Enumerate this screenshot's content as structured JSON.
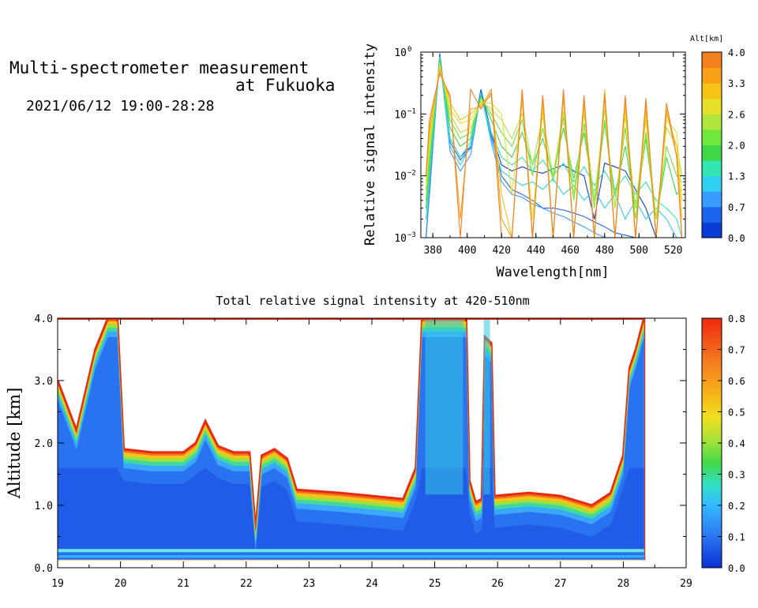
{
  "header": {
    "title_line1": "Multi-spectrometer measurement",
    "title_line2": "at Fukuoka",
    "datetime": "2021/06/12 19:00-28:28"
  },
  "chart_data": [
    {
      "type": "line",
      "title": "",
      "xlabel": "Wavelength[nm]",
      "ylabel": "Relative signal intensity",
      "xlim": [
        373,
        527
      ],
      "ylim": [
        0.001,
        1
      ],
      "yscale": "log",
      "xticks": [
        "380",
        "400",
        "420",
        "440",
        "460",
        "480",
        "500",
        "520"
      ],
      "yticks": [
        "10",
        "10",
        "10",
        "10"
      ],
      "ytick_exponents": [
        "0",
        "−1",
        "−2",
        "−3"
      ],
      "grid": false,
      "legend": "colorbar",
      "colorbar": {
        "title": "Alt[km]",
        "ticks": [
          "4.0",
          "3.3",
          "2.6",
          "2.0",
          "1.3",
          "0.7",
          "0.0"
        ],
        "colors": [
          "#0a3dd8",
          "#1c64ec",
          "#3a9bff",
          "#2fd0f0",
          "#33e6b0",
          "#40d84a",
          "#6ee83a",
          "#b0e63c",
          "#e6e02a",
          "#f7c316",
          "#f7a018",
          "#f58020"
        ]
      },
      "x": [
        376,
        378,
        384,
        390,
        396,
        402,
        408,
        414,
        420,
        426,
        432,
        438,
        444,
        450,
        456,
        462,
        468,
        474,
        480,
        486,
        492,
        498,
        504,
        510,
        516,
        522,
        525
      ],
      "series": [
        {
          "altitude_km": 0.0,
          "color": "#0a3dd8",
          "values": [
            0.001,
            0.005,
            0.95,
            0.04,
            0.02,
            0.03,
            0.25,
            0.05,
            0.015,
            0.012,
            0.014,
            0.012,
            0.011,
            0.013,
            0.015,
            0.012,
            0.01,
            0.002,
            0.016,
            0.014,
            0.012,
            0.006,
            0.003,
            0.001,
            0.001,
            0.001,
            0.001
          ]
        },
        {
          "altitude_km": 0.3,
          "color": "#1c64ec",
          "values": [
            0.001,
            0.006,
            0.9,
            0.035,
            0.018,
            0.028,
            0.24,
            0.045,
            0.01,
            0.006,
            0.005,
            0.004,
            0.003,
            0.003,
            0.0028,
            0.0025,
            0.0022,
            0.0018,
            0.0015,
            0.0012,
            0.0011,
            0.001,
            0.001,
            0.001,
            0.001,
            0.001,
            0.001
          ]
        },
        {
          "altitude_km": 0.7,
          "color": "#3a9bff",
          "values": [
            0.001,
            0.005,
            0.85,
            0.025,
            0.012,
            0.022,
            0.22,
            0.035,
            0.008,
            0.005,
            0.0045,
            0.0035,
            0.003,
            0.0025,
            0.0022,
            0.0018,
            0.0015,
            0.0012,
            0.001,
            0.001,
            0.001,
            0.001,
            0.001,
            0.001,
            0.001,
            0.001,
            0.001
          ]
        },
        {
          "altitude_km": 1.3,
          "color": "#2fd0f0",
          "values": [
            0.002,
            0.01,
            0.85,
            0.03,
            0.015,
            0.03,
            0.22,
            0.04,
            0.012,
            0.009,
            0.007,
            0.008,
            0.006,
            0.009,
            0.005,
            0.007,
            0.004,
            0.006,
            0.003,
            0.005,
            0.002,
            0.004,
            0.002,
            0.003,
            0.002,
            0.001,
            0.001
          ]
        },
        {
          "altitude_km": 1.6,
          "color": "#33e6b0",
          "values": [
            0.002,
            0.01,
            0.8,
            0.04,
            0.02,
            0.035,
            0.2,
            0.05,
            0.02,
            0.015,
            0.02,
            0.012,
            0.018,
            0.01,
            0.016,
            0.008,
            0.014,
            0.007,
            0.012,
            0.006,
            0.01,
            0.005,
            0.008,
            0.004,
            0.003,
            0.002,
            0.001
          ]
        },
        {
          "altitude_km": 2.0,
          "color": "#40d84a",
          "values": [
            0.003,
            0.015,
            0.75,
            0.06,
            0.03,
            0.04,
            0.2,
            0.08,
            0.03,
            0.02,
            0.05,
            0.015,
            0.04,
            0.01,
            0.06,
            0.009,
            0.05,
            0.004,
            0.07,
            0.005,
            0.03,
            0.003,
            0.04,
            0.002,
            0.02,
            0.005,
            0.006
          ]
        },
        {
          "altitude_km": 2.3,
          "color": "#6ee83a",
          "values": [
            0.004,
            0.02,
            0.7,
            0.08,
            0.04,
            0.05,
            0.18,
            0.1,
            0.05,
            0.03,
            0.08,
            0.01,
            0.06,
            0.008,
            0.09,
            0.004,
            0.07,
            0.003,
            0.08,
            0.003,
            0.06,
            0.002,
            0.05,
            0.002,
            0.03,
            0.01,
            0.008
          ]
        },
        {
          "altitude_km": 2.6,
          "color": "#b0e63c",
          "values": [
            0.006,
            0.03,
            0.65,
            0.1,
            0.05,
            0.06,
            0.16,
            0.12,
            0.08,
            0.04,
            0.1,
            0.015,
            0.09,
            0.01,
            0.11,
            0.005,
            0.1,
            0.004,
            0.12,
            0.003,
            0.09,
            0.003,
            0.08,
            0.002,
            0.06,
            0.03,
            0.01
          ]
        },
        {
          "altitude_km": 3.0,
          "color": "#e6e02a",
          "values": [
            0.008,
            0.04,
            0.6,
            0.12,
            0.07,
            0.08,
            0.15,
            0.15,
            0.1,
            0.005,
            0.15,
            0.002,
            0.12,
            0.001,
            0.18,
            0.001,
            0.14,
            0.001,
            0.2,
            0.001,
            0.12,
            0.001,
            0.1,
            0.001,
            0.08,
            0.05,
            0.004
          ]
        },
        {
          "altitude_km": 3.3,
          "color": "#f7c316",
          "values": [
            0.01,
            0.05,
            0.55,
            0.15,
            0.08,
            0.1,
            0.14,
            0.2,
            0.005,
            0.001,
            0.2,
            0.001,
            0.15,
            0.001,
            0.2,
            0.001,
            0.15,
            0.001,
            0.25,
            0.001,
            0.15,
            0.001,
            0.12,
            0.001,
            0.1,
            0.03,
            0.002
          ]
        },
        {
          "altitude_km": 3.7,
          "color": "#f7a018",
          "values": [
            0.01,
            0.06,
            0.5,
            0.18,
            0.002,
            0.12,
            0.13,
            0.25,
            0.002,
            0.001,
            0.22,
            0.001,
            0.2,
            0.001,
            0.22,
            0.001,
            0.18,
            0.001,
            0.22,
            0.001,
            0.18,
            0.001,
            0.15,
            0.001,
            0.12,
            0.02,
            0.001
          ]
        },
        {
          "altitude_km": 4.0,
          "color": "#f58020",
          "values": [
            0.01,
            0.08,
            0.45,
            0.2,
            0.001,
            0.25,
            0.12,
            0.22,
            0.001,
            0.001,
            0.25,
            0.001,
            0.2,
            0.001,
            0.25,
            0.001,
            0.2,
            0.001,
            0.2,
            0.001,
            0.2,
            0.001,
            0.18,
            0.001,
            0.15,
            0.02,
            0.001
          ]
        }
      ]
    },
    {
      "type": "heatmap",
      "title": "Total relative signal intensity at 420-510nm",
      "xlabel": "",
      "ylabel": "Altitude [km]",
      "xlim": [
        19,
        29
      ],
      "ylim": [
        0,
        4
      ],
      "xticks": [
        "19",
        "20",
        "21",
        "22",
        "23",
        "24",
        "25",
        "26",
        "27",
        "28",
        "29"
      ],
      "yticks": [
        "0.0",
        "1.0",
        "2.0",
        "3.0",
        "4.0"
      ],
      "grid": false,
      "colorbar": {
        "ticks": [
          "0.0",
          "0.1",
          "0.2",
          "0.3",
          "0.4",
          "0.5",
          "0.6",
          "0.7",
          "0.8"
        ],
        "vmin": 0,
        "vmax": 0.8
      },
      "data_end_hour": 28.33,
      "cloud_base_km": [
        {
          "t": 19.0,
          "h": 3.0
        },
        {
          "t": 19.3,
          "h": 2.2
        },
        {
          "t": 19.6,
          "h": 3.5
        },
        {
          "t": 19.8,
          "h": 4.0
        },
        {
          "t": 19.95,
          "h": 4.0
        },
        {
          "t": 20.05,
          "h": 1.9
        },
        {
          "t": 20.5,
          "h": 1.85
        },
        {
          "t": 21.0,
          "h": 1.85
        },
        {
          "t": 21.2,
          "h": 2.0
        },
        {
          "t": 21.35,
          "h": 2.35
        },
        {
          "t": 21.55,
          "h": 1.95
        },
        {
          "t": 21.8,
          "h": 1.85
        },
        {
          "t": 22.05,
          "h": 1.85
        },
        {
          "t": 22.15,
          "h": 0.6
        },
        {
          "t": 22.25,
          "h": 1.8
        },
        {
          "t": 22.45,
          "h": 1.9
        },
        {
          "t": 22.65,
          "h": 1.75
        },
        {
          "t": 22.8,
          "h": 1.25
        },
        {
          "t": 23.5,
          "h": 1.2
        },
        {
          "t": 24.0,
          "h": 1.15
        },
        {
          "t": 24.5,
          "h": 1.1
        },
        {
          "t": 24.7,
          "h": 1.6
        },
        {
          "t": 24.8,
          "h": 4.0
        },
        {
          "t": 25.5,
          "h": 4.0
        },
        {
          "t": 25.55,
          "h": 1.4
        },
        {
          "t": 25.65,
          "h": 1.05
        },
        {
          "t": 25.75,
          "h": 1.1
        },
        {
          "t": 25.8,
          "h": 3.7
        },
        {
          "t": 25.9,
          "h": 3.6
        },
        {
          "t": 25.95,
          "h": 1.15
        },
        {
          "t": 26.5,
          "h": 1.2
        },
        {
          "t": 27.0,
          "h": 1.15
        },
        {
          "t": 27.5,
          "h": 1.0
        },
        {
          "t": 27.8,
          "h": 1.2
        },
        {
          "t": 28.0,
          "h": 1.8
        },
        {
          "t": 28.1,
          "h": 3.2
        },
        {
          "t": 28.2,
          "h": 3.5
        },
        {
          "t": 28.33,
          "h": 4.0
        }
      ]
    }
  ]
}
